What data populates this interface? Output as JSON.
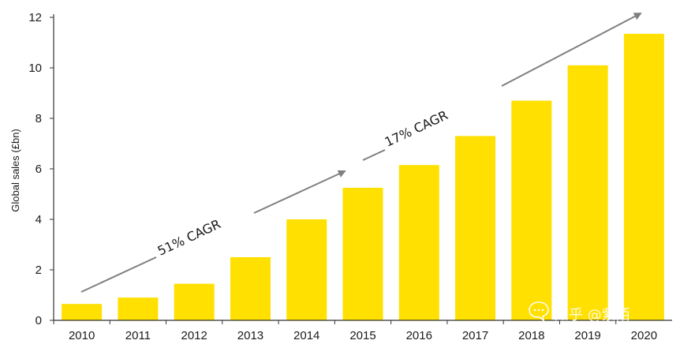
{
  "chart_data": {
    "type": "bar",
    "title": "",
    "xlabel": "",
    "ylabel": "Global sales (£bn)",
    "categories": [
      "2010",
      "2011",
      "2012",
      "2013",
      "2014",
      "2015",
      "2016",
      "2017",
      "2018",
      "2019",
      "2020"
    ],
    "values": [
      0.65,
      0.9,
      1.45,
      2.5,
      4.0,
      5.25,
      6.15,
      7.3,
      8.7,
      10.1,
      11.35
    ],
    "ylim": [
      0,
      12
    ],
    "yticks": [
      "0",
      "2",
      "4",
      "6",
      "8",
      "10",
      "12"
    ],
    "grid": false,
    "legend": "none",
    "annotations": [
      {
        "text": "51% CAGR",
        "from_year": "2010",
        "to_year": "2015"
      },
      {
        "text": "17% CAGR",
        "from_year": "2015",
        "to_year": "2020"
      }
    ],
    "bar_color": "#FFE000",
    "arrow_color": "#7f7f7f",
    "axis_color": "#333333"
  },
  "watermark": {
    "text": "知乎 @紫陌",
    "icon": "chat-bubble-icon"
  }
}
